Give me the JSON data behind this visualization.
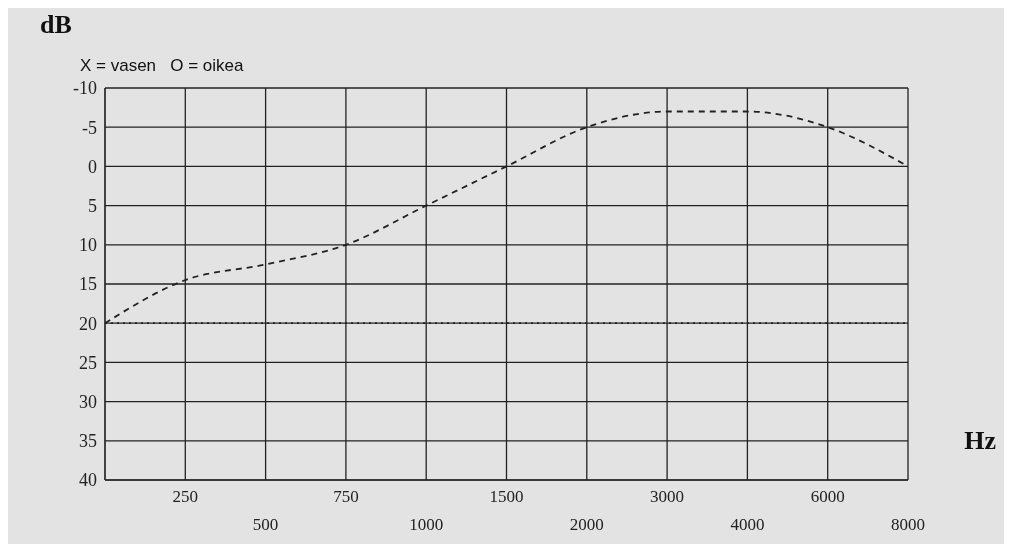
{
  "chart_data": {
    "type": "line",
    "xlabel": "Hz",
    "ylabel": "dB",
    "annotations": [
      "X = vasen   O = oikea"
    ],
    "categories": [
      null,
      "250",
      "500",
      "750",
      "1000",
      "1500",
      "2000",
      "3000",
      "4000",
      "6000",
      "8000"
    ],
    "series": [
      {
        "color": "#222222",
        "line_style": "dashed",
        "values": [
          20,
          14.5,
          12.5,
          10,
          5,
          0,
          -5,
          -7,
          -7,
          -5,
          0
        ]
      },
      {
        "color": "#222222",
        "line_style": "dotted",
        "values": [
          20,
          20,
          20,
          20,
          20,
          20,
          20,
          20,
          20,
          20,
          20
        ]
      }
    ],
    "ylim": [
      40,
      -10
    ],
    "yticks": [
      -10,
      -5,
      0,
      5,
      10,
      15,
      20,
      25,
      30,
      35,
      40
    ],
    "grid": true,
    "marker": "none"
  }
}
